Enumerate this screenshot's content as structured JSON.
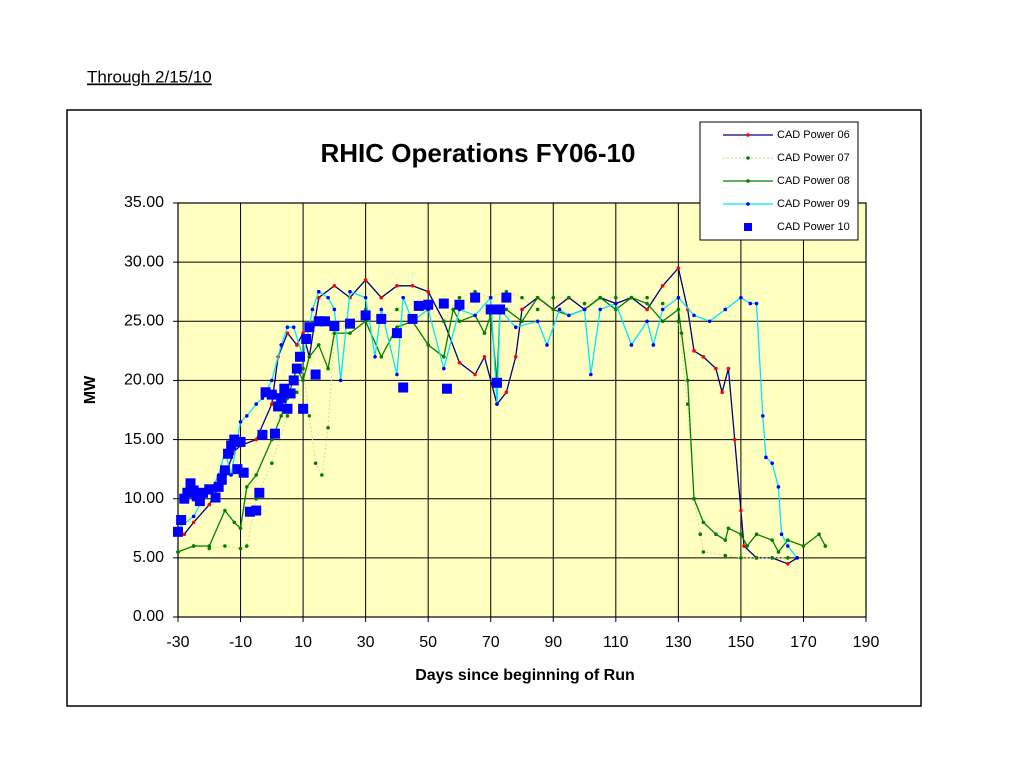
{
  "note": "Through 2/15/10",
  "chart_data": {
    "type": "line",
    "title": "RHIC Operations FY06-10",
    "xlabel": "Days since beginning of Run",
    "ylabel": "MW",
    "xlim": [
      -30,
      190
    ],
    "xticks": [
      -30,
      -10,
      10,
      30,
      50,
      70,
      90,
      110,
      130,
      150,
      170,
      190
    ],
    "ylim": [
      0,
      35
    ],
    "yticks": [
      {
        "value": 0,
        "label": "0.00"
      },
      {
        "value": 5,
        "label": "5.00"
      },
      {
        "value": 10,
        "label": "10.00"
      },
      {
        "value": 15,
        "label": "15.00"
      },
      {
        "value": 20,
        "label": "20.00"
      },
      {
        "value": 25,
        "label": "25.00"
      },
      {
        "value": 30,
        "label": "30.00"
      },
      {
        "value": 35,
        "label": "35.00"
      }
    ],
    "grid": true,
    "legend": "upper right",
    "plot_background": "#ffffc0",
    "series": [
      {
        "name": "CAD Power 06",
        "color": "#000080",
        "marker_color": "#ff0000",
        "marker": "circle",
        "line": true,
        "x": [
          -28,
          -25,
          -20,
          -15,
          -12,
          -10,
          -5,
          0,
          2,
          5,
          8,
          10,
          12,
          15,
          20,
          25,
          30,
          35,
          40,
          45,
          50,
          55,
          60,
          65,
          68,
          72,
          75,
          78,
          80,
          85,
          90,
          95,
          100,
          105,
          110,
          115,
          120,
          125,
          130,
          133,
          135,
          138,
          142,
          144,
          146,
          148,
          150,
          151,
          155,
          160,
          165,
          168
        ],
        "values": [
          7,
          8,
          9.5,
          12,
          14,
          14.5,
          15,
          18,
          22,
          24,
          23,
          24,
          22,
          27,
          28,
          27,
          28.5,
          27,
          28,
          28,
          27.5,
          25,
          21.5,
          20.5,
          22,
          18,
          19,
          22,
          26,
          27,
          26,
          27,
          26,
          27,
          26.5,
          27,
          26,
          28,
          29.5,
          26,
          22.5,
          22,
          21,
          19,
          21,
          15,
          9,
          6,
          5,
          5,
          4.5,
          5
        ]
      },
      {
        "name": "CAD Power 07",
        "color": "#d8d8a8",
        "marker_color": "#008000",
        "marker": "circle",
        "line": true,
        "x": [
          -30,
          -25,
          -20,
          -15,
          -10,
          -8,
          -5,
          0,
          5,
          8,
          10,
          12,
          14,
          16,
          18,
          20,
          25,
          30,
          35,
          40,
          45,
          50,
          55,
          60,
          65,
          70,
          75,
          80,
          85,
          90,
          95,
          100,
          105,
          110,
          115,
          120,
          125,
          130,
          133,
          135,
          137,
          138,
          145,
          150,
          155,
          160,
          165
        ],
        "values": [
          5.5,
          6,
          5.8,
          6,
          5.8,
          6,
          10,
          13,
          17,
          19,
          21,
          17,
          13,
          12,
          16,
          24,
          25,
          26,
          25,
          26,
          25,
          26,
          25,
          27,
          27.5,
          27,
          27.5,
          27,
          26,
          27,
          27,
          26.5,
          27,
          27,
          27,
          27,
          26.5,
          25,
          18,
          10,
          7,
          5.5,
          5.2,
          5,
          5,
          5,
          5
        ]
      },
      {
        "name": "CAD Power 08",
        "color": "#008000",
        "marker_color": "#008000",
        "marker": "circle",
        "line": true,
        "x": [
          -30,
          -25,
          -20,
          -15,
          -12,
          -10,
          -8,
          -5,
          0,
          3,
          5,
          8,
          10,
          12,
          15,
          18,
          20,
          25,
          30,
          35,
          40,
          45,
          50,
          55,
          58,
          60,
          65,
          68,
          70,
          72,
          73,
          75,
          80,
          85,
          90,
          95,
          100,
          105,
          110,
          115,
          120,
          125,
          130,
          131,
          133,
          135,
          138,
          142,
          145,
          146,
          150,
          152,
          155,
          160,
          162,
          165,
          170,
          175,
          177
        ],
        "values": [
          5.5,
          6,
          6,
          9,
          8,
          7.5,
          11,
          12,
          15,
          17,
          18.5,
          21,
          20,
          22,
          23,
          21,
          24,
          24,
          25,
          22,
          24.5,
          25,
          23,
          22,
          26,
          25,
          25.5,
          24,
          25.5,
          20,
          26,
          26,
          25,
          27,
          26,
          25.5,
          26,
          27,
          26,
          27,
          26.5,
          25,
          26,
          24,
          20,
          10,
          8,
          7,
          6.5,
          7.5,
          7,
          6,
          7,
          6.5,
          5.5,
          6.5,
          6,
          7,
          6
        ]
      },
      {
        "name": "CAD Power 09",
        "color": "#00e5ff",
        "marker_color": "#0000ff",
        "marker": "circle",
        "line": true,
        "x": [
          -30,
          -25,
          -22,
          -20,
          -17,
          -15,
          -13,
          -10,
          -8,
          -5,
          -3,
          0,
          3,
          5,
          7,
          10,
          13,
          15,
          18,
          20,
          22,
          25,
          30,
          33,
          35,
          40,
          42,
          45,
          50,
          55,
          60,
          65,
          70,
          72,
          73,
          78,
          85,
          88,
          92,
          95,
          100,
          102,
          105,
          110,
          115,
          120,
          122,
          125,
          130,
          135,
          140,
          145,
          150,
          153,
          155,
          157,
          158,
          160,
          162,
          163,
          165,
          168
        ],
        "values": [
          7.5,
          8.5,
          10,
          10.5,
          12,
          14,
          12,
          16.5,
          17,
          18,
          18.5,
          20,
          23,
          24.5,
          24.5,
          22,
          26,
          27.5,
          27,
          26,
          20,
          27.5,
          27,
          22,
          26,
          20.5,
          27,
          25,
          26,
          21,
          26,
          25.5,
          27,
          18,
          26,
          24.5,
          25,
          23,
          26,
          25.5,
          26,
          20.5,
          26,
          26.5,
          23,
          25,
          23,
          26,
          27,
          25.5,
          25,
          26,
          27,
          26.5,
          26.5,
          17,
          13.5,
          13,
          11,
          7,
          6,
          5
        ]
      },
      {
        "name": "CAD Power 10",
        "color": "#0000ff",
        "marker_color": "#0000ff",
        "marker": "square",
        "line": false,
        "x": [
          -30,
          -29,
          -28,
          -27,
          -26,
          -25,
          -24,
          -23,
          -22,
          -20,
          -18,
          -17,
          -16,
          -15,
          -14,
          -13,
          -12,
          -11,
          -10,
          -9,
          -7,
          -5,
          -4,
          -3,
          -2,
          0,
          1,
          2,
          3,
          4,
          5,
          6,
          7,
          8,
          9,
          10,
          11,
          12,
          14,
          15,
          17,
          20,
          25,
          30,
          35,
          40,
          42,
          45,
          47,
          50,
          55,
          56,
          60,
          65,
          70,
          72,
          73,
          75
        ],
        "values": [
          7.2,
          8.2,
          10,
          10.5,
          11.3,
          10.7,
          10.2,
          9.8,
          10.5,
          10.8,
          10.1,
          11,
          11.6,
          12.4,
          13.8,
          14.5,
          15,
          12.5,
          14.8,
          12.2,
          8.9,
          9,
          10.5,
          15.4,
          19,
          18.8,
          15.5,
          17.8,
          18.5,
          19.3,
          17.6,
          18.9,
          20,
          21,
          22,
          17.6,
          23.5,
          24.5,
          20.5,
          25,
          25,
          24.6,
          24.8,
          25.5,
          25.2,
          24,
          19.4,
          25.2,
          26.3,
          26.4,
          26.5,
          19.3,
          26.4,
          27,
          26,
          19.8,
          26,
          27
        ]
      }
    ]
  }
}
